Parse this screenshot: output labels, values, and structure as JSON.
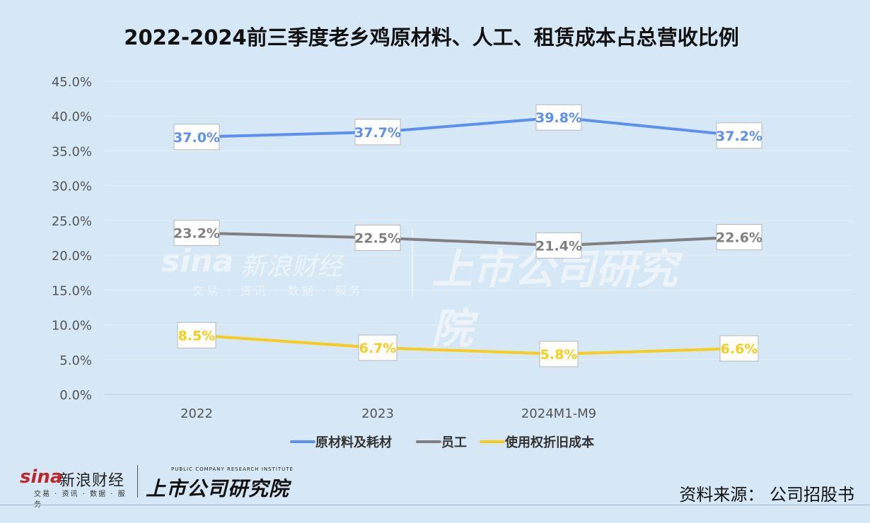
{
  "chart_data": {
    "type": "line",
    "title": "2022-2024前三季度老乡鸡原材料、人工、租赁成本占总营收比例",
    "categories": [
      "2022",
      "2023",
      "2024M1-M9",
      ""
    ],
    "ylim": [
      0,
      45
    ],
    "y_ticks": [
      "0.0%",
      "5.0%",
      "10.0%",
      "15.0%",
      "20.0%",
      "25.0%",
      "30.0%",
      "35.0%",
      "40.0%",
      "45.0%"
    ],
    "grid": true,
    "legend_position": "bottom",
    "series": [
      {
        "name": "原材料及耗材",
        "values": [
          37.0,
          37.7,
          39.8,
          37.2
        ],
        "labels": [
          "37.0%",
          "37.7%",
          "39.8%",
          "37.2%"
        ],
        "color": "#5b8ff0"
      },
      {
        "name": "员工",
        "values": [
          23.2,
          22.5,
          21.4,
          22.6
        ],
        "labels": [
          "23.2%",
          "22.5%",
          "21.4%",
          "22.6%"
        ],
        "color": "#808080"
      },
      {
        "name": "使用权折旧成本",
        "values": [
          8.5,
          6.7,
          5.8,
          6.6
        ],
        "labels": [
          "8.5%",
          "6.7%",
          "5.8%",
          "6.6%"
        ],
        "color": "#f7cc1a"
      }
    ]
  },
  "footer": {
    "source": "资料来源：  公司招股书"
  },
  "logos": {
    "sina_mark": "sina",
    "sina_name": "新浪财经",
    "sina_tagline": "交易 · 资讯 · 数据 · 服务",
    "research_en": "PUBLIC COMPANY RESEARCH INSTITUTE",
    "research_cn": "上市公司研究院"
  }
}
